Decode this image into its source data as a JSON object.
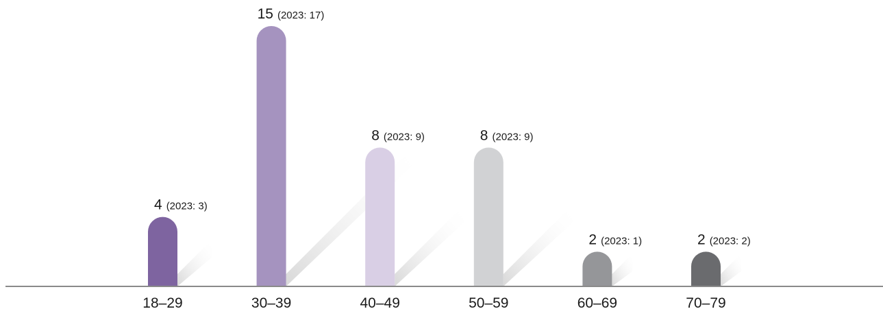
{
  "chart_data": {
    "type": "bar",
    "categories": [
      "18–29",
      "30–39",
      "40–49",
      "50–59",
      "60–69",
      "70–79"
    ],
    "values": [
      4,
      15,
      8,
      8,
      2,
      2
    ],
    "previous_labels": [
      "(2023: 3)",
      "(2023: 17)",
      "(2023: 9)",
      "(2023: 9)",
      "(2023: 1)",
      "(2023: 2)"
    ],
    "previous_values": [
      3,
      17,
      9,
      9,
      1,
      2
    ],
    "colors": [
      "#7e64a0",
      "#a593bf",
      "#d9cfe5",
      "#d1d2d4",
      "#959699",
      "#6a6b6e"
    ],
    "axis_color": "#8a8a8a",
    "shadow_color": "#e4e4e4",
    "ylim": [
      0,
      15
    ],
    "grid": false,
    "legend": "none"
  }
}
